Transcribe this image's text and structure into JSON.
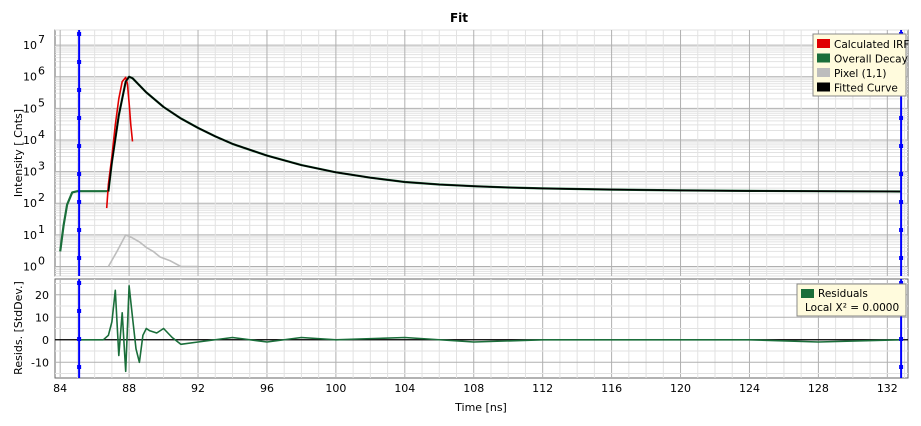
{
  "window": {
    "title": "Fit"
  },
  "chart_data": [
    {
      "type": "line",
      "panel": "decay",
      "title": "Fit",
      "ylabel": "Intensity [ Cnts]",
      "yscale": "log",
      "ylim": [
        0.5,
        30000000
      ],
      "xlim": [
        83.7,
        133.2
      ],
      "yticks": [
        1,
        10,
        100,
        1000,
        10000,
        100000,
        1000000,
        10000000
      ],
      "ytick_labels": [
        "10",
        "10",
        "10",
        "10",
        "10",
        "10",
        "10",
        "10"
      ],
      "ytick_exponents": [
        "0",
        "1",
        "2",
        "3",
        "4",
        "5",
        "6",
        "7"
      ],
      "grid": true,
      "legend_position": "top-right",
      "cursor_lines_x": [
        85.1,
        132.8
      ],
      "series": [
        {
          "name": "Calculated IRF",
          "color": "#e00000",
          "x": [
            86.7,
            86.8,
            87.0,
            87.2,
            87.4,
            87.6,
            87.8,
            87.9,
            88.0,
            88.1,
            88.2
          ],
          "y": [
            70,
            400,
            3000,
            30000,
            200000,
            700000,
            950000,
            600000,
            150000,
            30000,
            9000
          ]
        },
        {
          "name": "Overall Decay",
          "color": "#1a6e3a",
          "x": [
            84.0,
            84.2,
            84.4,
            84.7,
            85.0,
            86.8,
            87.0,
            87.4,
            87.8,
            88.0,
            88.2,
            89,
            90,
            91,
            92,
            93,
            94,
            96,
            98,
            100,
            102,
            104,
            106,
            108,
            110,
            112,
            116,
            120,
            124,
            128,
            132.8
          ],
          "y": [
            3,
            20,
            90,
            220,
            240,
            240,
            2000,
            60000,
            700000,
            1000000,
            900000,
            320000,
            110000,
            48000,
            24000,
            13000,
            7500,
            3200,
            1600,
            950,
            640,
            470,
            390,
            345,
            315,
            295,
            270,
            255,
            245,
            240,
            235
          ]
        },
        {
          "name": "Pixel (1,1)",
          "color": "#bdbdbd",
          "x": [
            86.8,
            87.3,
            87.8,
            88.2,
            88.6,
            89.0,
            89.4,
            89.8,
            90.4,
            91.0,
            92.0
          ],
          "y": [
            1,
            3,
            10,
            8,
            6,
            4,
            3,
            2,
            1.5,
            1,
            1
          ]
        },
        {
          "name": "Fitted Curve",
          "color": "#000000",
          "x": [
            86.8,
            87.0,
            87.4,
            87.8,
            88.0,
            88.2,
            89,
            90,
            91,
            92,
            93,
            94,
            96,
            98,
            100,
            102,
            104,
            106,
            108,
            110,
            112,
            116,
            120,
            124,
            128,
            132.8
          ],
          "y": [
            240,
            2000,
            60000,
            700000,
            1000000,
            900000,
            320000,
            110000,
            48000,
            24000,
            13000,
            7500,
            3200,
            1600,
            950,
            640,
            470,
            390,
            345,
            315,
            295,
            270,
            255,
            245,
            240,
            235
          ]
        }
      ]
    },
    {
      "type": "line",
      "panel": "residuals",
      "ylabel": "Resids. [StdDev.]",
      "xlabel": "Time [ns]",
      "ylim": [
        -17,
        27
      ],
      "xlim": [
        83.7,
        133.2
      ],
      "yticks": [
        -10,
        0,
        10,
        20
      ],
      "ytick_labels": [
        "-10",
        "0",
        "10",
        "20"
      ],
      "xticks": [
        84,
        88,
        92,
        96,
        100,
        104,
        108,
        112,
        116,
        120,
        124,
        128,
        132
      ],
      "xtick_labels": [
        "84",
        "88",
        "92",
        "96",
        "100",
        "104",
        "108",
        "112",
        "116",
        "120",
        "124",
        "128",
        "132"
      ],
      "grid": true,
      "legend_position": "top-right",
      "series": [
        {
          "name": "Residuals",
          "color": "#1a6e3a",
          "x": [
            85.1,
            86.5,
            86.8,
            87.0,
            87.2,
            87.4,
            87.6,
            87.8,
            88.0,
            88.2,
            88.4,
            88.6,
            88.8,
            89.0,
            89.2,
            89.6,
            90.0,
            90.5,
            91.0,
            92,
            94,
            96,
            98,
            100,
            104,
            108,
            112,
            116,
            120,
            124,
            128,
            132.8
          ],
          "y": [
            0,
            0,
            2,
            8,
            22,
            -7,
            12,
            -14,
            24,
            10,
            -4,
            -10,
            2,
            5,
            4,
            3,
            5,
            1,
            -2,
            -1,
            1,
            -1,
            1,
            0,
            1,
            -1,
            0,
            0,
            0,
            0,
            -1,
            0
          ]
        }
      ],
      "legend_extra": "Local X² = 0.0000"
    }
  ]
}
